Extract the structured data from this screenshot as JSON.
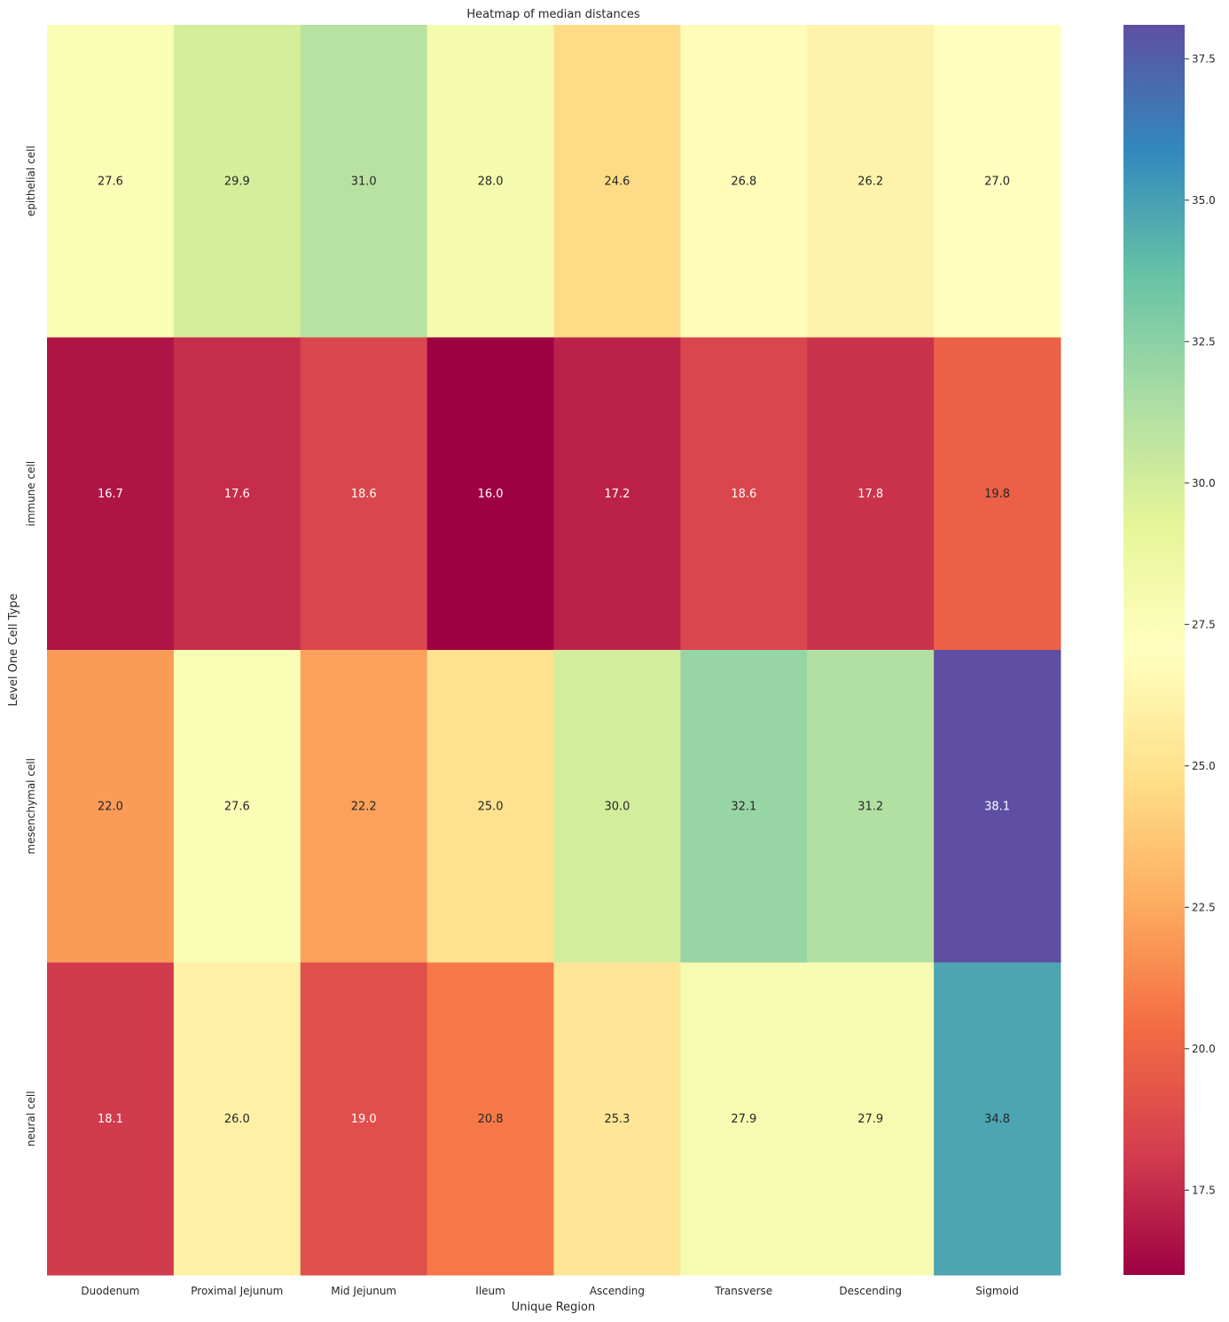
{
  "chart_data": {
    "type": "heatmap",
    "title": "Heatmap of median distances",
    "xlabel": "Unique Region",
    "ylabel": "Level One Cell Type",
    "x_categories": [
      "Duodenum",
      "Proximal Jejunum",
      "Mid Jejunum",
      "Ileum",
      "Ascending",
      "Transverse",
      "Descending",
      "Sigmoid"
    ],
    "y_categories": [
      "epithelial cell",
      "immune cell",
      "mesenchymal cell",
      "neural cell"
    ],
    "values": [
      [
        27.6,
        29.9,
        31.0,
        28.0,
        24.6,
        26.8,
        26.2,
        27.0
      ],
      [
        16.7,
        17.6,
        18.6,
        16.0,
        17.2,
        18.6,
        17.8,
        19.8
      ],
      [
        22.0,
        27.6,
        22.2,
        25.0,
        30.0,
        32.1,
        31.2,
        38.1
      ],
      [
        18.1,
        26.0,
        19.0,
        20.8,
        25.3,
        27.9,
        27.9,
        34.8
      ]
    ],
    "value_format": "0.0",
    "colormap": "Spectral",
    "vmin": 16.0,
    "vmax": 38.1,
    "colorbar_ticks": [
      17.5,
      20.0,
      22.5,
      25.0,
      27.5,
      30.0,
      32.5,
      35.0,
      37.5
    ],
    "colorbar_tick_labels": [
      "17.5",
      "20.0",
      "22.5",
      "25.0",
      "27.5",
      "30.0",
      "32.5",
      "35.0",
      "37.5"
    ],
    "grid": false,
    "legend": "colorbar-right"
  }
}
